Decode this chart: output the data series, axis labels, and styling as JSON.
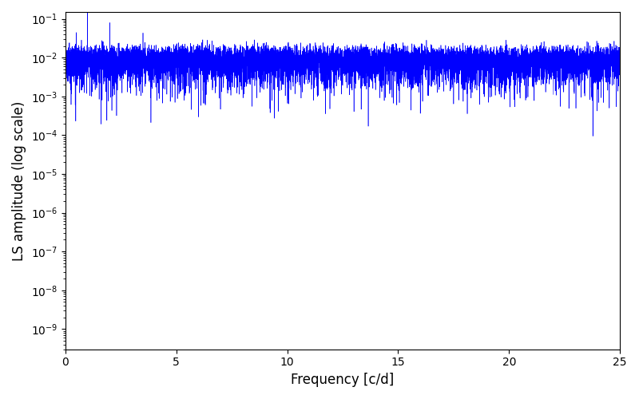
{
  "xlabel": "Frequency [c/d]",
  "ylabel": "LS amplitude (log scale)",
  "xlim": [
    0,
    25
  ],
  "ylim": [
    3e-10,
    0.15
  ],
  "line_color": "#0000ff",
  "line_width": 0.4,
  "freq_max": 25.0,
  "n_points": 10000,
  "seed": 42,
  "background_color": "#ffffff",
  "figure_width": 8.0,
  "figure_height": 5.0,
  "dpi": 100
}
